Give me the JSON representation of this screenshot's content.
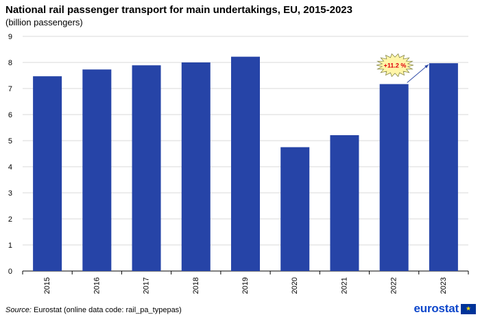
{
  "chart_data": {
    "type": "bar",
    "title": "National rail passenger transport for main undertakings, EU, 2015-2023",
    "subtitle": "(billion passengers)",
    "categories": [
      "2015",
      "2016",
      "2017",
      "2018",
      "2019",
      "2020",
      "2021",
      "2022",
      "2023"
    ],
    "values": [
      7.47,
      7.73,
      7.89,
      8.0,
      8.22,
      4.75,
      5.21,
      7.17,
      7.97
    ],
    "ylim": [
      0,
      9
    ],
    "yticks": [
      0,
      1,
      2,
      3,
      4,
      5,
      6,
      7,
      8,
      9
    ],
    "xlabel": "",
    "ylabel": "",
    "grid": true,
    "bar_color": "#2644a7",
    "annotation": {
      "text": "+11.2 %",
      "from": "2022",
      "to": "2023",
      "badge_fill": "#fff5a8",
      "text_color": "#e0000b"
    }
  },
  "source": {
    "label": "Source:",
    "text": "Eurostat (online data code: rail_pa_typepas)"
  },
  "logo": {
    "text": "eurostat",
    "icon": "eu-flag-icon"
  }
}
